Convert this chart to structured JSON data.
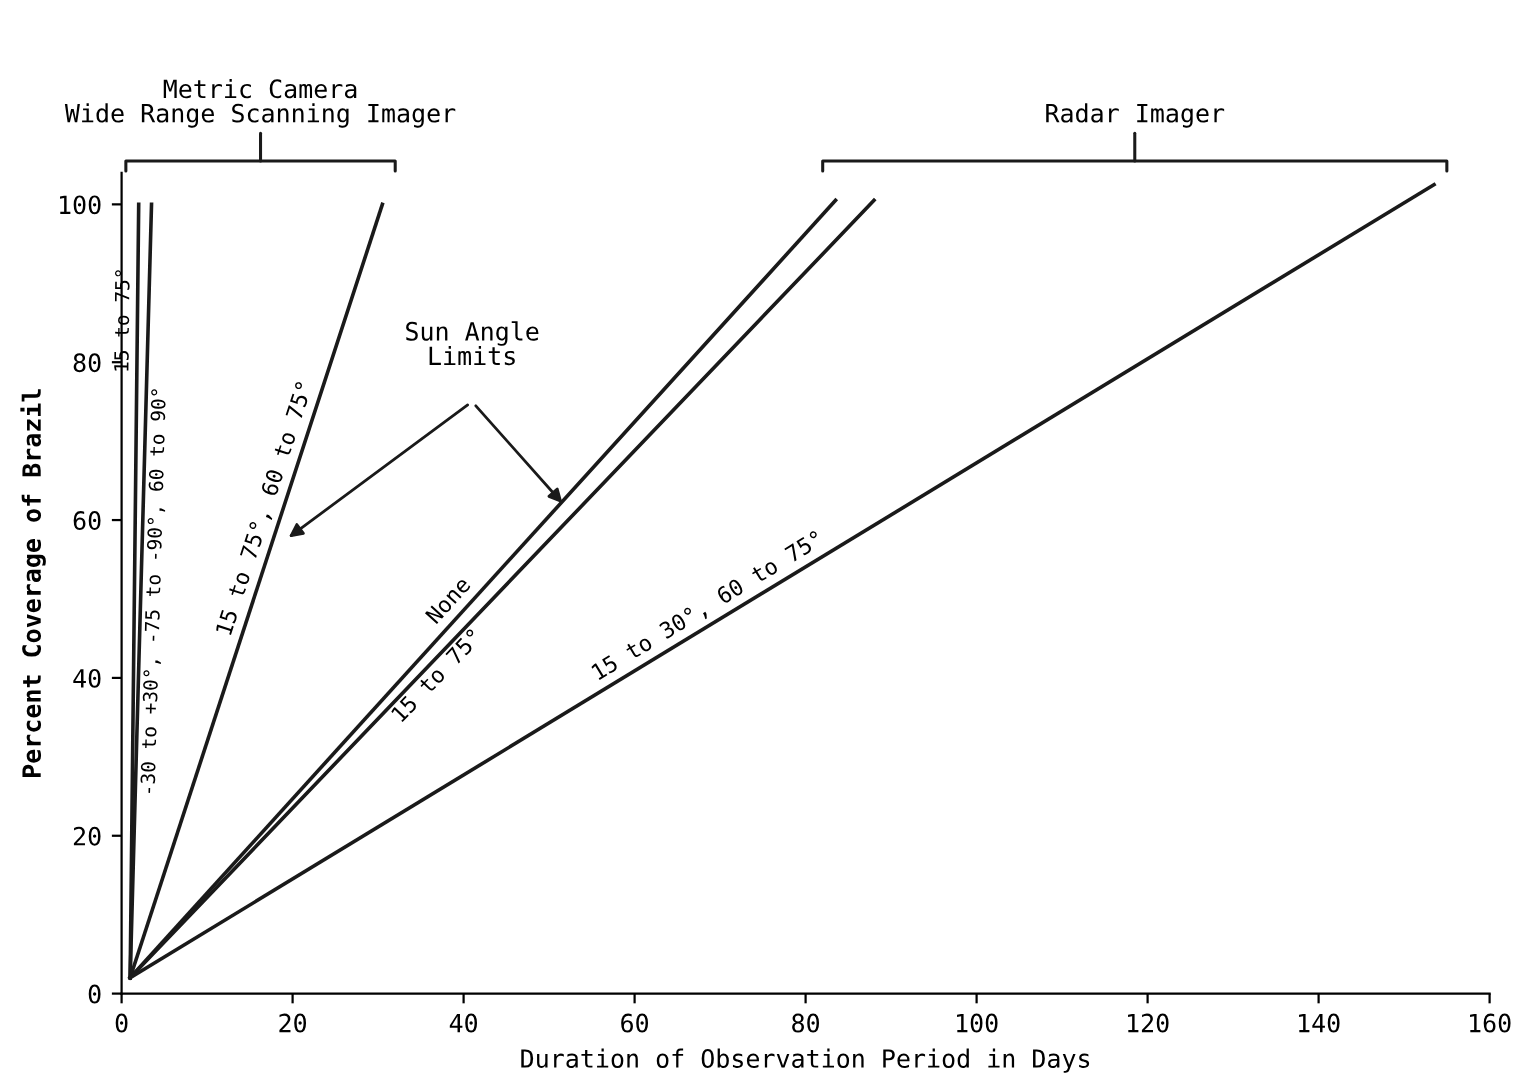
{
  "chart_data": {
    "type": "line",
    "xlabel": "Duration of Observation Period in Days",
    "ylabel": "Percent Coverage of Brazil",
    "xlim": [
      0,
      160
    ],
    "ylim": [
      0,
      104
    ],
    "xticks": [
      0,
      20,
      40,
      60,
      80,
      100,
      120,
      140,
      160
    ],
    "yticks": [
      0,
      20,
      40,
      60,
      80,
      100
    ],
    "grid": false,
    "legend": false,
    "marker": "none",
    "line_style": "solid",
    "series": [
      {
        "name": "15 to 75°",
        "color": "#1a1a1a",
        "x": [
          1,
          2
        ],
        "values": [
          2,
          100
        ]
      },
      {
        "name": "-30 to +30°, -75 to -90°, 60 to 90°",
        "color": "#1a1a1a",
        "x": [
          1,
          3.5
        ],
        "values": [
          2,
          100
        ]
      },
      {
        "name": "15 to 75°, 60 to 75°",
        "color": "#1a1a1a",
        "x": [
          1,
          30.5
        ],
        "values": [
          2,
          100
        ]
      },
      {
        "name": "None",
        "color": "#1a1a1a",
        "x": [
          1,
          83.5
        ],
        "values": [
          2,
          100.5
        ]
      },
      {
        "name": "15 to 75°",
        "color": "#1a1a1a",
        "x": [
          1,
          88
        ],
        "values": [
          2,
          100.5
        ]
      },
      {
        "name": "15 to 30°, 60 to 75°",
        "color": "#1a1a1a",
        "x": [
          1,
          153.5
        ],
        "values": [
          2,
          102.5
        ]
      }
    ],
    "annotations": [
      "Metric Camera\nWide Range Scanning Imager",
      "Radar Imager",
      "Sun Angle\nLimits"
    ]
  }
}
